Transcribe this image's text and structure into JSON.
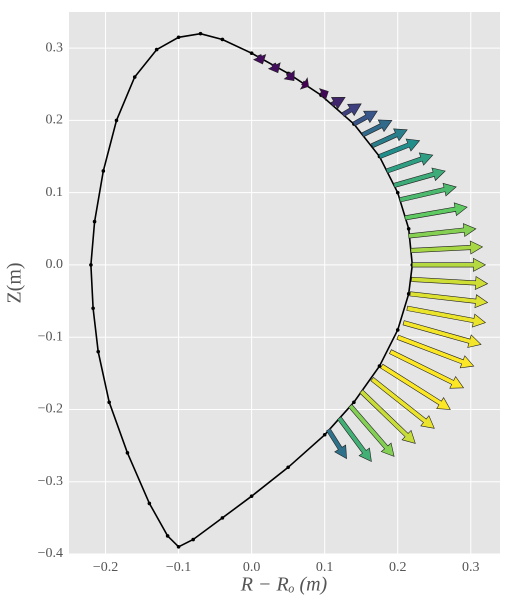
{
  "chart_data": {
    "type": "quiver",
    "xlabel": "R − Rₒ (m)",
    "ylabel": "Z(m)",
    "xlim": [
      -0.25,
      0.34
    ],
    "ylim": [
      -0.4,
      0.35
    ],
    "xticks": [
      {
        "value": -0.2,
        "label": "−0.2"
      },
      {
        "value": -0.1,
        "label": "−0.1"
      },
      {
        "value": 0,
        "label": "0.0"
      },
      0.1,
      0.2,
      0.3
    ],
    "yticks": [
      {
        "value": -0.4,
        "label": "−0.4"
      },
      {
        "value": -0.3,
        "label": "−0.3"
      },
      {
        "value": -0.2,
        "label": "−0.2"
      },
      {
        "value": -0.1,
        "label": "−0.1"
      },
      {
        "value": 0,
        "label": "0.0"
      },
      0.1,
      0.2,
      0.3
    ],
    "grid": true,
    "line_color": "#000000",
    "colormap": "viridis",
    "boundary_x": [
      0.22,
      0.215,
      0.2,
      0.175,
      0.14,
      0.095,
      0.05,
      0.0,
      -0.04,
      -0.07,
      -0.1,
      -0.13,
      -0.16,
      -0.185,
      -0.203,
      -0.215,
      -0.22,
      -0.217,
      -0.21,
      -0.195,
      -0.17,
      -0.14,
      -0.115,
      -0.1,
      -0.08,
      -0.04,
      0.0,
      0.05,
      0.1,
      0.14,
      0.175,
      0.2,
      0.215,
      0.22
    ],
    "boundary_y": [
      0.0,
      0.05,
      0.1,
      0.15,
      0.195,
      0.235,
      0.265,
      0.293,
      0.312,
      0.32,
      0.315,
      0.298,
      0.26,
      0.2,
      0.13,
      0.06,
      0.0,
      -0.06,
      -0.12,
      -0.19,
      -0.26,
      -0.33,
      -0.375,
      -0.39,
      -0.38,
      -0.35,
      -0.32,
      -0.28,
      -0.235,
      -0.19,
      -0.14,
      -0.09,
      -0.04,
      0.0
    ],
    "x": [
      0.01,
      0.03,
      0.05,
      0.07,
      0.095,
      0.11,
      0.125,
      0.14,
      0.152,
      0.165,
      0.175,
      0.185,
      0.195,
      0.203,
      0.21,
      0.215,
      0.218,
      0.22,
      0.219,
      0.217,
      0.213,
      0.208,
      0.2,
      0.19,
      0.178,
      0.165,
      0.15,
      0.135,
      0.12,
      0.105
    ],
    "y": [
      0.29,
      0.278,
      0.265,
      0.252,
      0.235,
      0.222,
      0.208,
      0.195,
      0.18,
      0.165,
      0.15,
      0.13,
      0.11,
      0.09,
      0.065,
      0.04,
      0.02,
      0.0,
      -0.02,
      -0.04,
      -0.06,
      -0.08,
      -0.1,
      -0.12,
      -0.14,
      -0.158,
      -0.175,
      -0.195,
      -0.212,
      -0.228
    ],
    "u": [
      0.005,
      0.006,
      0.008,
      0.008,
      0.01,
      0.018,
      0.025,
      0.032,
      0.04,
      0.048,
      0.055,
      0.063,
      0.07,
      0.077,
      0.085,
      0.092,
      0.098,
      0.1,
      0.104,
      0.106,
      0.107,
      0.106,
      0.104,
      0.1,
      0.094,
      0.085,
      0.074,
      0.06,
      0.044,
      0.025
    ],
    "v": [
      -0.012,
      -0.012,
      -0.01,
      -0.005,
      0.005,
      0.01,
      0.015,
      0.018,
      0.02,
      0.022,
      0.022,
      0.022,
      0.02,
      0.018,
      0.015,
      0.01,
      0.005,
      0.0,
      -0.006,
      -0.012,
      -0.02,
      -0.03,
      -0.04,
      -0.05,
      -0.06,
      -0.068,
      -0.072,
      -0.07,
      -0.06,
      -0.04
    ]
  }
}
